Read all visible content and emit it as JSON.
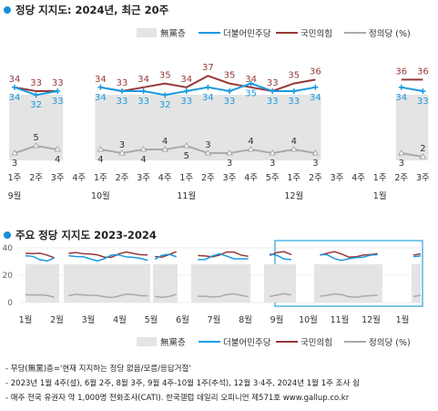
{
  "chart_data": [
    {
      "type": "line",
      "title": "정당 지지도: 2024년, 최근 20주",
      "legend": {
        "placement": "top-right",
        "unit_note": "(%)"
      },
      "colors": {
        "minjoo": "#1a9ae0",
        "ppp": "#963838",
        "justice": "#aaaaaa",
        "none": "#e4e4e4"
      },
      "series": [
        {
          "name": "무당층",
          "segments": [
            [
              3,
              5,
              4
            ],
            [
              4,
              3,
              4,
              4,
              5,
              3,
              3,
              4,
              3,
              4,
              3
            ],
            [
              3,
              2
            ]
          ]
        },
        {
          "name": "더불어민주당",
          "segments": [
            [
              34,
              32,
              33
            ],
            [
              34,
              33,
              33,
              32,
              33,
              34,
              33,
              35,
              33,
              33,
              34
            ],
            [
              34,
              33
            ]
          ]
        },
        {
          "name": "국민의힘",
          "segments": [
            [
              34,
              33,
              33
            ],
            [
              34,
              33,
              34,
              35,
              34,
              37,
              35,
              34,
              33,
              35,
              36
            ],
            [
              36,
              36
            ]
          ]
        },
        {
          "name": "정의당",
          "segments": [
            [
              3,
              5,
              4
            ],
            [
              4,
              3,
              4,
              4,
              5,
              3,
              3,
              4,
              3,
              4,
              3
            ],
            [
              3,
              2
            ]
          ]
        }
      ],
      "none_band_note": "무당층 values not printed in this panel",
      "week_labels": [
        "1주",
        "2주",
        "3주",
        "4주",
        "1주",
        "2주",
        "3주",
        "4주",
        "1주",
        "2주",
        "3주",
        "4주",
        "5주",
        "1주",
        "2주",
        "3주",
        "4주",
        "1주",
        "2주",
        "3주"
      ],
      "month_labels": [
        {
          "label": "9월",
          "week_index": 0
        },
        {
          "label": "10월",
          "week_index": 4
        },
        {
          "label": "11월",
          "week_index": 8
        },
        {
          "label": "12월",
          "week_index": 13
        },
        {
          "label": "1월",
          "week_index": 17
        }
      ],
      "data_label_row": {
        "minjoo": [
          34,
          32,
          33,
          null,
          34,
          33,
          33,
          32,
          33,
          34,
          33,
          35,
          33,
          33,
          34,
          null,
          null,
          null,
          34,
          33
        ],
        "ppp": [
          34,
          33,
          33,
          null,
          34,
          33,
          34,
          35,
          34,
          37,
          35,
          34,
          33,
          35,
          36,
          null,
          null,
          null,
          36,
          36
        ],
        "justice": [
          3,
          5,
          4,
          null,
          4,
          3,
          4,
          4,
          5,
          3,
          3,
          4,
          3,
          4,
          3,
          null,
          null,
          null,
          3,
          2
        ]
      }
    },
    {
      "type": "line",
      "title": "주요 정당 지지도 2023-2024",
      "legend": {
        "placement": "bottom-right",
        "unit_note": "(%)"
      },
      "ylim": [
        0,
        40
      ],
      "y_ticks": [
        "40",
        "20",
        "0"
      ],
      "month_labels": [
        "1월",
        "2월",
        "3월",
        "4월",
        "5월",
        "6월",
        "7월",
        "8월",
        "9월",
        "10월",
        "11월",
        "12월",
        "1월"
      ],
      "highlight": "last 20 weeks (9월–1월)"
    }
  ],
  "legend_labels": {
    "none": "無黨층",
    "minjoo": "더불어민주당",
    "ppp": "국민의힘",
    "justice": "정의당 (%)",
    "justice2": "정의당 (%)"
  },
  "footnotes": [
    "- 무당(無黨)층='현재 지지하는 정당 없음/모름/응답거절'",
    "- 2023년 1월 4주(설), 6월 2주, 8월 3주, 9월 4주-10월 1주(추석), 12월 3·4주, 2024년 1월 1주 조사 쉼",
    "- 매주 전국 유권자 약 1,000명 전화조사(CATI). 한국갤럽 데일리 오피니언 제571호 www.gallup.co.kr"
  ]
}
